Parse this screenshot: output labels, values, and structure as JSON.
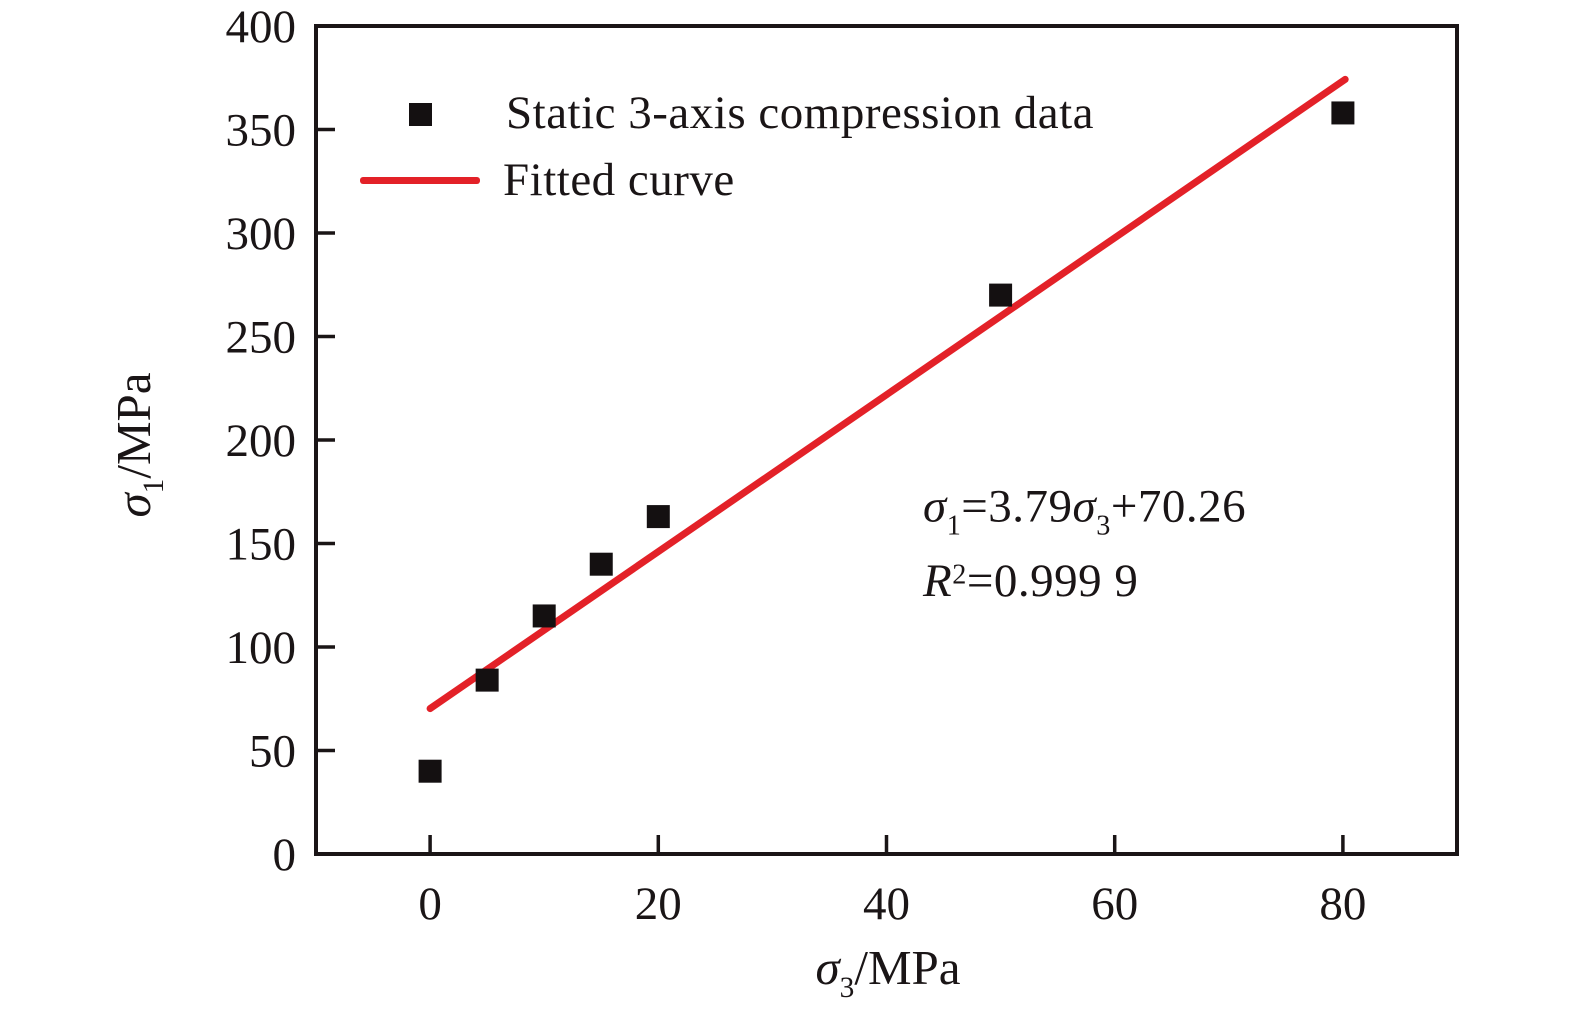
{
  "colors": {
    "background": "#ffffff",
    "axis": "#1a1516",
    "text": "#1a1516",
    "marker": "#141011",
    "fit": "#e32128"
  },
  "chart_data": {
    "type": "scatter",
    "title": "",
    "xlabel": {
      "sym": "σ",
      "sub": "3",
      "unit": "/MPa"
    },
    "ylabel": {
      "sym": "σ",
      "sub": "1",
      "unit": "/MPa"
    },
    "xlim": [
      -10,
      90
    ],
    "ylim": [
      0,
      400
    ],
    "x_ticks": [
      0,
      20,
      40,
      60,
      80
    ],
    "y_ticks": [
      0,
      50,
      100,
      150,
      200,
      250,
      300,
      350,
      400
    ],
    "grid": false,
    "legend_position": "top-left-inside",
    "series": [
      {
        "name": "Static 3-axis compression data",
        "type": "scatter",
        "marker": "filled-square",
        "points": [
          [
            0,
            40
          ],
          [
            5,
            84
          ],
          [
            10,
            115
          ],
          [
            15,
            140
          ],
          [
            20,
            163
          ],
          [
            50,
            270
          ],
          [
            80,
            358
          ]
        ]
      },
      {
        "name": "Fitted curve",
        "type": "line",
        "slope": 3.79,
        "intercept": 70.26,
        "x_range": [
          0,
          80.2
        ],
        "r_squared": 0.9999
      }
    ],
    "annotation": {
      "l1_sym1": "σ",
      "l1_sub1": "1",
      "l1_mid": "=3.79",
      "l1_sym2": "σ",
      "l1_sub2": "3",
      "l1_tail": "+70.26",
      "l2_r": "R",
      "l2_sup": "2",
      "l2_tail": "=0.999 9"
    }
  }
}
